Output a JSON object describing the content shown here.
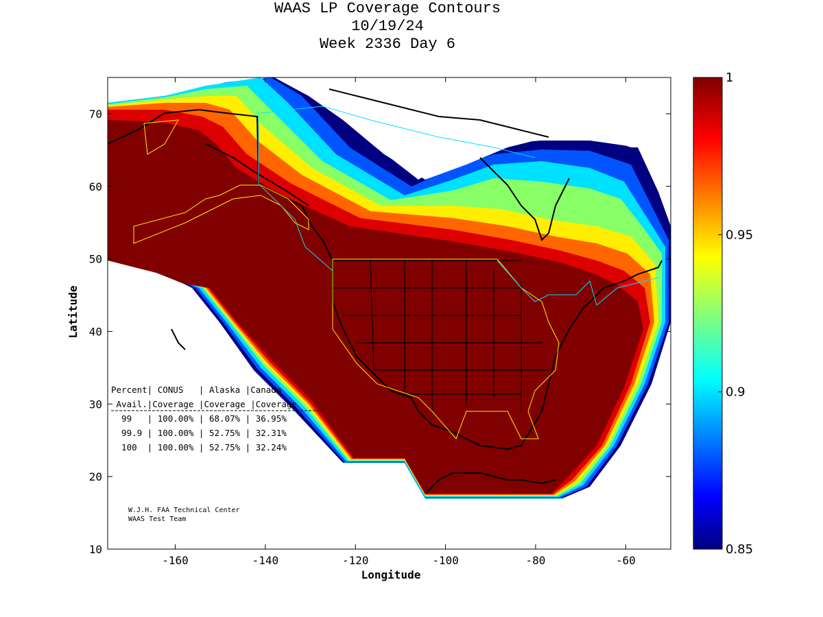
{
  "title": {
    "line1": "WAAS LP Coverage Contours",
    "line2": "10/19/24",
    "line3": "Week 2336 Day 6"
  },
  "axes": {
    "xlabel": "Longitude",
    "ylabel": "Latitude",
    "xticks": [
      -160,
      -140,
      -120,
      -100,
      -80,
      -60
    ],
    "yticks": [
      10,
      20,
      30,
      40,
      50,
      60,
      70
    ],
    "xlim": [
      -175,
      -50
    ],
    "ylim": [
      10,
      75
    ]
  },
  "colorbar": {
    "min": 0.85,
    "max": 1,
    "ticks": [
      {
        "value": 0.85,
        "label": "0.85"
      },
      {
        "value": 0.9,
        "label": "0.9"
      },
      {
        "value": 0.95,
        "label": "0.95"
      },
      {
        "value": 1,
        "label": "1"
      }
    ],
    "colormap": "jet"
  },
  "table": {
    "header1": "Percent| CONUS   | Alaska |Canada",
    "header2": " Avail.|Coverage |Coverage |Coverage",
    "rows": [
      "  99   | 100.00% | 68.07% | 36.95%",
      "  99.9 | 100.00% | 52.75% | 32.31%",
      "  100  | 100.00% | 52.75% | 32.24%"
    ]
  },
  "credit": {
    "line1": "W.J.H. FAA Technical Center",
    "line2": "WAAS Test Team"
  },
  "colors": {
    "dark_red": "#800000",
    "red": "#cc0000",
    "orange": "#ff6600",
    "yellow": "#ffee00",
    "cyan": "#00e5ff",
    "blue": "#0033ff",
    "navy": "#000080"
  }
}
